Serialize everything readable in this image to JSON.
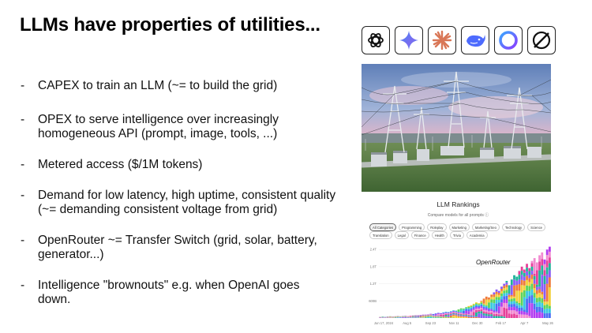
{
  "slide": {
    "title": "LLMs have properties of utilities...",
    "bullets": [
      {
        "dash": "-",
        "text": "CAPEX to train an LLM (~= to build the grid)"
      },
      {
        "dash": "-",
        "text": "OPEX to serve intelligence over increasingly homogeneous API (prompt, image, tools, ...)"
      },
      {
        "dash": "-",
        "text": "Metered access ($/1M tokens)"
      },
      {
        "dash": "-",
        "text": "Demand for low latency, high uptime, consistent quality (~= demanding consistent voltage from grid)"
      },
      {
        "dash": "-",
        "text": "OpenRouter ~= Transfer Switch (grid, solar, battery, generator...)"
      },
      {
        "dash": "-",
        "text": "Intelligence \"brownouts\" e.g. when OpenAI goes down."
      }
    ]
  },
  "logos": [
    {
      "icon": "openai-logo-icon",
      "color": "#111111"
    },
    {
      "icon": "gemini-sparkle-icon",
      "color": "#4a7bd8"
    },
    {
      "icon": "anthropic-asterisk-icon",
      "color": "#d97757"
    },
    {
      "icon": "deepseek-whale-icon",
      "color": "#4d6bfe"
    },
    {
      "icon": "ring-logo-icon",
      "color": "#6a5cff"
    },
    {
      "icon": "xai-logo-icon",
      "color": "#111111"
    }
  ],
  "rankings": {
    "title": "LLM Rankings",
    "subtitle": "Compare models for all prompts ⓘ",
    "tabs_row1": [
      "All Categories",
      "Programming",
      "Roleplay",
      "Marketing",
      "Marketing/Seo",
      "Technology",
      "Science"
    ],
    "tabs_row2": [
      "Translation",
      "Legal",
      "Finance",
      "Health",
      "Trivia",
      "Academia"
    ],
    "active_tab": "All Categories"
  },
  "chart_data": {
    "type": "bar",
    "stacked": true,
    "annotation": "OpenRouter",
    "y_ticks": [
      "600B",
      "1.2T",
      "1.8T",
      "2.4T"
    ],
    "ylim": [
      0,
      2.6
    ],
    "y_unit": "T tokens",
    "x_ticks": [
      "Jun 17, 2024",
      "Aug 5",
      "Sep 23",
      "Nov 11",
      "Dec 30",
      "Feb 17",
      "Apr 7",
      "May 26"
    ],
    "series_colors": [
      "#e6409a",
      "#f28ad0",
      "#b33df0",
      "#4a6ef5",
      "#38c7e0",
      "#5bd45b",
      "#f2d03b",
      "#f07b3a",
      "#8a5cf5",
      "#22b39a"
    ],
    "totals": [
      0.04,
      0.05,
      0.04,
      0.05,
      0.06,
      0.05,
      0.06,
      0.07,
      0.06,
      0.07,
      0.08,
      0.07,
      0.08,
      0.09,
      0.1,
      0.1,
      0.11,
      0.12,
      0.12,
      0.13,
      0.15,
      0.14,
      0.16,
      0.18,
      0.17,
      0.2,
      0.22,
      0.21,
      0.24,
      0.27,
      0.26,
      0.3,
      0.34,
      0.33,
      0.38,
      0.42,
      0.45,
      0.5,
      0.55,
      0.52,
      0.6,
      0.68,
      0.75,
      0.72,
      0.82,
      0.9,
      1.0,
      0.95,
      1.1,
      1.2,
      1.3,
      1.15,
      1.35,
      1.5,
      1.45,
      1.65,
      1.8,
      1.7,
      1.9,
      1.75,
      2.0,
      2.1,
      1.95,
      2.2,
      2.3,
      2.05,
      2.4,
      2.5
    ]
  }
}
